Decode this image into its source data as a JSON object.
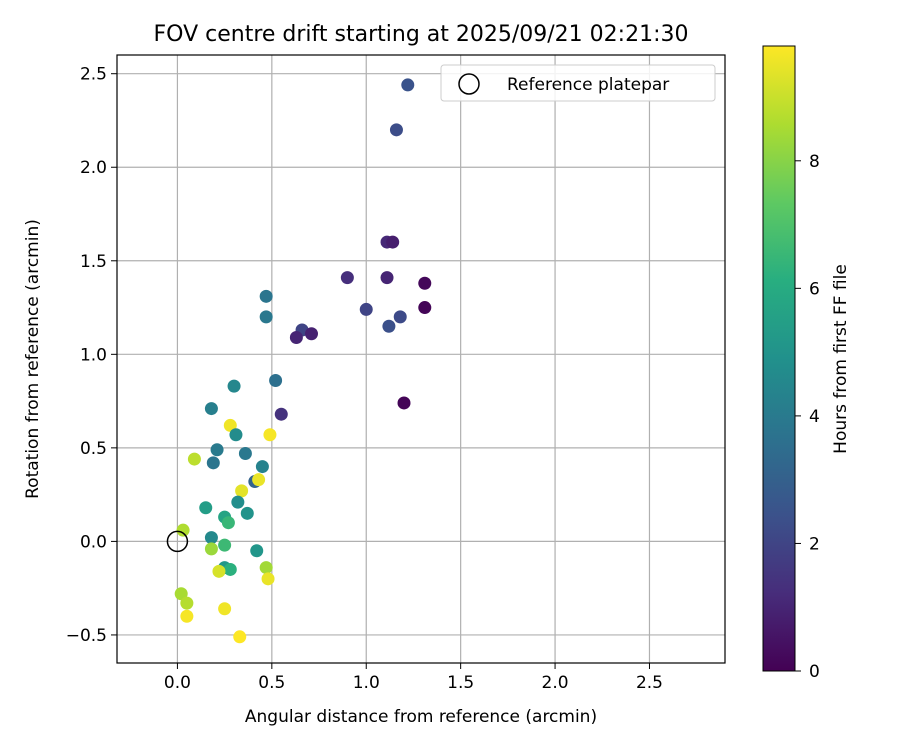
{
  "chart_data": {
    "type": "scatter",
    "title": "FOV centre drift starting at 2025/09/21 02:21:30",
    "xlabel": "Angular distance from reference (arcmin)",
    "ylabel": "Rotation from reference (arcmin)",
    "xlim": [
      -0.32,
      2.9
    ],
    "ylim": [
      -0.65,
      2.6
    ],
    "x_ticks": [
      0.0,
      0.5,
      1.0,
      1.5,
      2.0,
      2.5
    ],
    "x_tick_labels": [
      "0.0",
      "0.5",
      "1.0",
      "1.5",
      "2.0",
      "2.5"
    ],
    "y_ticks": [
      -0.5,
      0.0,
      0.5,
      1.0,
      1.5,
      2.0,
      2.5
    ],
    "y_tick_labels": [
      "−0.5",
      "0.0",
      "0.5",
      "1.0",
      "1.5",
      "2.0",
      "2.5"
    ],
    "grid": true,
    "legend": {
      "position": "top-right",
      "entries": [
        "Reference platepar"
      ]
    },
    "reference_point": {
      "x": 0.0,
      "y": 0.0,
      "label": "Reference platepar"
    },
    "colorbar": {
      "label": "Hours from first FF file",
      "min": 0,
      "max": 9.8,
      "ticks": [
        0,
        2,
        4,
        6,
        8
      ],
      "tick_labels": [
        "0",
        "2",
        "4",
        "6",
        "8"
      ],
      "colormap": "viridis"
    },
    "points": [
      {
        "x": 1.22,
        "y": 2.44,
        "hours": 2.5
      },
      {
        "x": 1.16,
        "y": 2.2,
        "hours": 2.3
      },
      {
        "x": 1.11,
        "y": 1.6,
        "hours": 1.1
      },
      {
        "x": 1.14,
        "y": 1.6,
        "hours": 0.8
      },
      {
        "x": 0.9,
        "y": 1.41,
        "hours": 1.3
      },
      {
        "x": 1.11,
        "y": 1.41,
        "hours": 1.0
      },
      {
        "x": 1.31,
        "y": 1.38,
        "hours": 0.2
      },
      {
        "x": 1.31,
        "y": 1.25,
        "hours": 0.1
      },
      {
        "x": 1.0,
        "y": 1.24,
        "hours": 2.0
      },
      {
        "x": 1.18,
        "y": 1.2,
        "hours": 2.2
      },
      {
        "x": 1.12,
        "y": 1.15,
        "hours": 2.4
      },
      {
        "x": 0.47,
        "y": 1.31,
        "hours": 3.8
      },
      {
        "x": 0.47,
        "y": 1.2,
        "hours": 3.9
      },
      {
        "x": 0.66,
        "y": 1.13,
        "hours": 2.0
      },
      {
        "x": 0.71,
        "y": 1.11,
        "hours": 0.9
      },
      {
        "x": 0.63,
        "y": 1.09,
        "hours": 1.0
      },
      {
        "x": 0.52,
        "y": 0.86,
        "hours": 3.6
      },
      {
        "x": 1.2,
        "y": 0.74,
        "hours": 0.1
      },
      {
        "x": 0.3,
        "y": 0.83,
        "hours": 4.5
      },
      {
        "x": 0.18,
        "y": 0.71,
        "hours": 4.2
      },
      {
        "x": 0.55,
        "y": 0.68,
        "hours": 1.4
      },
      {
        "x": 0.28,
        "y": 0.62,
        "hours": 9.6
      },
      {
        "x": 0.31,
        "y": 0.57,
        "hours": 4.7
      },
      {
        "x": 0.49,
        "y": 0.57,
        "hours": 9.7
      },
      {
        "x": 0.21,
        "y": 0.49,
        "hours": 4.0
      },
      {
        "x": 0.36,
        "y": 0.47,
        "hours": 3.9
      },
      {
        "x": 0.09,
        "y": 0.44,
        "hours": 8.8
      },
      {
        "x": 0.19,
        "y": 0.42,
        "hours": 3.8
      },
      {
        "x": 0.45,
        "y": 0.4,
        "hours": 4.3
      },
      {
        "x": 0.41,
        "y": 0.32,
        "hours": 3.1
      },
      {
        "x": 0.43,
        "y": 0.33,
        "hours": 9.5
      },
      {
        "x": 0.34,
        "y": 0.27,
        "hours": 9.4
      },
      {
        "x": 0.32,
        "y": 0.21,
        "hours": 4.8
      },
      {
        "x": 0.15,
        "y": 0.18,
        "hours": 5.4
      },
      {
        "x": 0.37,
        "y": 0.15,
        "hours": 5.0
      },
      {
        "x": 0.25,
        "y": 0.13,
        "hours": 5.7
      },
      {
        "x": 0.27,
        "y": 0.1,
        "hours": 6.5
      },
      {
        "x": 0.03,
        "y": 0.06,
        "hours": 8.6
      },
      {
        "x": 0.18,
        "y": 0.02,
        "hours": 4.6
      },
      {
        "x": 0.25,
        "y": -0.02,
        "hours": 6.6
      },
      {
        "x": 0.18,
        "y": -0.04,
        "hours": 8.3
      },
      {
        "x": 0.42,
        "y": -0.05,
        "hours": 5.1
      },
      {
        "x": 0.25,
        "y": -0.14,
        "hours": 5.2
      },
      {
        "x": 0.28,
        "y": -0.15,
        "hours": 6.2
      },
      {
        "x": 0.47,
        "y": -0.14,
        "hours": 8.4
      },
      {
        "x": 0.22,
        "y": -0.16,
        "hours": 9.2
      },
      {
        "x": 0.48,
        "y": -0.2,
        "hours": 9.5
      },
      {
        "x": 0.02,
        "y": -0.28,
        "hours": 8.5
      },
      {
        "x": 0.05,
        "y": -0.33,
        "hours": 8.7
      },
      {
        "x": 0.25,
        "y": -0.36,
        "hours": 9.6
      },
      {
        "x": 0.05,
        "y": -0.4,
        "hours": 9.7
      },
      {
        "x": 0.33,
        "y": -0.51,
        "hours": 9.8
      }
    ]
  }
}
